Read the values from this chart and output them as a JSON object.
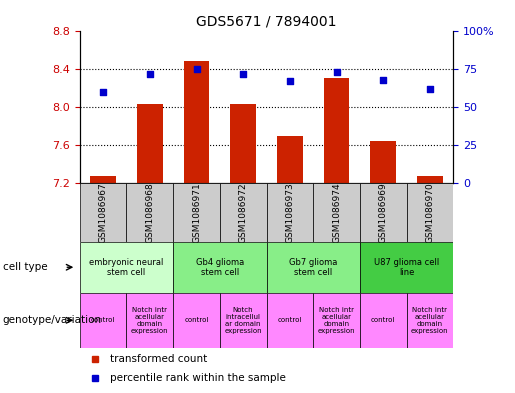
{
  "title": "GDS5671 / 7894001",
  "samples": [
    "GSM1086967",
    "GSM1086968",
    "GSM1086971",
    "GSM1086972",
    "GSM1086973",
    "GSM1086974",
    "GSM1086969",
    "GSM1086970"
  ],
  "transformed_count": [
    7.27,
    8.03,
    8.49,
    8.03,
    7.69,
    8.31,
    7.64,
    7.27
  ],
  "percentile_rank": [
    60,
    72,
    75,
    72,
    67,
    73,
    68,
    62
  ],
  "ylim_left": [
    7.2,
    8.8
  ],
  "ylim_right": [
    0,
    100
  ],
  "yticks_left": [
    7.2,
    7.6,
    8.0,
    8.4,
    8.8
  ],
  "yticks_right": [
    0,
    25,
    50,
    75,
    100
  ],
  "ytick_right_labels": [
    "0",
    "25",
    "50",
    "75",
    "100%"
  ],
  "hgrid_lines": [
    7.6,
    8.0,
    8.4
  ],
  "cell_types": [
    {
      "label": "embryonic neural\nstem cell",
      "span": [
        0,
        2
      ],
      "color": "#ccffcc"
    },
    {
      "label": "Gb4 glioma\nstem cell",
      "span": [
        2,
        4
      ],
      "color": "#88ee88"
    },
    {
      "label": "Gb7 glioma\nstem cell",
      "span": [
        4,
        6
      ],
      "color": "#88ee88"
    },
    {
      "label": "U87 glioma cell\nline",
      "span": [
        6,
        8
      ],
      "color": "#44cc44"
    }
  ],
  "genotype_variation": [
    {
      "label": "control",
      "span": [
        0,
        1
      ]
    },
    {
      "label": "Notch intr\nacellular\ndomain\nexpression",
      "span": [
        1,
        2
      ]
    },
    {
      "label": "control",
      "span": [
        2,
        3
      ]
    },
    {
      "label": "Notch\nintracellul\nar domain\nexpression",
      "span": [
        3,
        4
      ]
    },
    {
      "label": "control",
      "span": [
        4,
        5
      ]
    },
    {
      "label": "Notch intr\nacellular\ndomain\nexpression",
      "span": [
        5,
        6
      ]
    },
    {
      "label": "control",
      "span": [
        6,
        7
      ]
    },
    {
      "label": "Notch intr\nacellular\ndomain\nexpression",
      "span": [
        7,
        8
      ]
    }
  ],
  "geno_color": "#ff88ff",
  "bar_color": "#cc2200",
  "dot_color": "#0000cc",
  "bar_bottom": 7.2,
  "cell_type_row_label": "cell type",
  "genotype_row_label": "genotype/variation",
  "legend_bar_label": "transformed count",
  "legend_dot_label": "percentile rank within the sample",
  "tick_color_left": "#cc0000",
  "tick_color_right": "#0000cc",
  "sample_box_color": "#cccccc"
}
